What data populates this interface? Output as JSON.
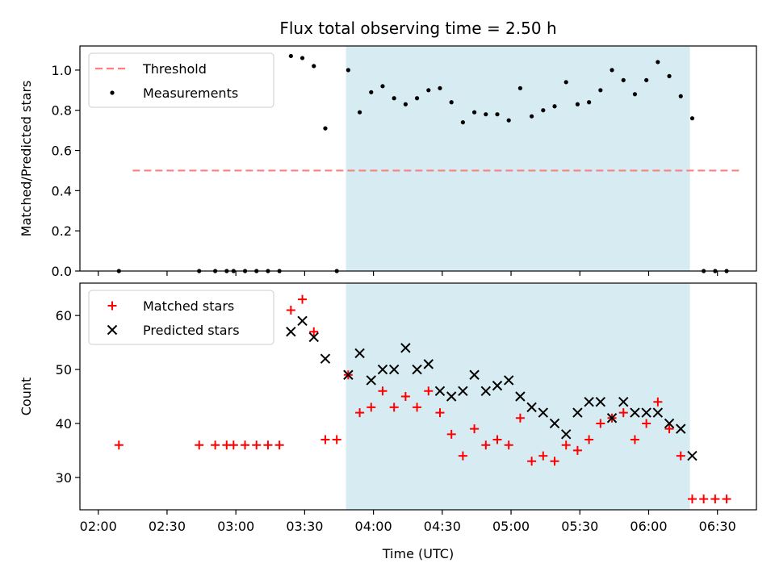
{
  "chart_data": [
    {
      "type": "scatter",
      "title": "Flux total observing time = 2.50 h",
      "xlabel": "",
      "ylabel": "Matched/Predicted stars",
      "ylim": [
        0.0,
        1.12
      ],
      "yticks": [
        "0.0",
        "0.2",
        "0.4",
        "0.6",
        "0.8",
        "1.0"
      ],
      "yticks_values": [
        0.0,
        0.2,
        0.4,
        0.6,
        0.8,
        1.0
      ],
      "xlim": [
        "01:52",
        "06:47"
      ],
      "shaded_interval": [
        "03:48",
        "06:18"
      ],
      "legend": {
        "position": "top-left",
        "entries": [
          "Threshold",
          "Measurements"
        ]
      },
      "series": [
        {
          "name": "Threshold",
          "kind": "dashed-line",
          "color": "#ff7f7f",
          "x": [
            "02:15",
            "06:40"
          ],
          "values": [
            0.5,
            0.5
          ]
        },
        {
          "name": "Measurements",
          "kind": "points",
          "color": "#000000",
          "x": [
            "02:09",
            "02:44",
            "02:51",
            "02:56",
            "02:59",
            "03:04",
            "03:09",
            "03:14",
            "03:19",
            "03:24",
            "03:29",
            "03:34",
            "03:39",
            "03:44",
            "03:49",
            "03:54",
            "03:59",
            "04:04",
            "04:09",
            "04:14",
            "04:19",
            "04:24",
            "04:29",
            "04:34",
            "04:39",
            "04:44",
            "04:49",
            "04:54",
            "04:59",
            "05:04",
            "05:09",
            "05:14",
            "05:19",
            "05:24",
            "05:29",
            "05:34",
            "05:39",
            "05:44",
            "05:49",
            "05:54",
            "05:59",
            "06:04",
            "06:09",
            "06:14",
            "06:19",
            "06:24",
            "06:29",
            "06:34"
          ],
          "values": [
            0.0,
            0.0,
            0.0,
            0.0,
            0.0,
            0.0,
            0.0,
            0.0,
            0.0,
            1.07,
            1.06,
            1.02,
            0.71,
            0.0,
            1.0,
            0.79,
            0.89,
            0.92,
            0.86,
            0.83,
            0.86,
            0.9,
            0.91,
            0.84,
            0.74,
            0.79,
            0.78,
            0.78,
            0.75,
            0.91,
            0.77,
            0.8,
            0.82,
            0.94,
            0.83,
            0.84,
            0.9,
            1.0,
            0.95,
            0.88,
            0.95,
            1.04,
            0.97,
            0.87,
            0.76,
            0.0,
            0.0,
            0.0
          ]
        }
      ]
    },
    {
      "type": "scatter",
      "title": "",
      "xlabel": "Time (UTC)",
      "ylabel": "Count",
      "ylim": [
        24,
        66
      ],
      "yticks": [
        "30",
        "40",
        "50",
        "60"
      ],
      "yticks_values": [
        30,
        40,
        50,
        60
      ],
      "xlim": [
        "01:52",
        "06:47"
      ],
      "xticks": [
        "02:00",
        "02:30",
        "03:00",
        "03:30",
        "04:00",
        "04:30",
        "05:00",
        "05:30",
        "06:00",
        "06:30"
      ],
      "shaded_interval": [
        "03:48",
        "06:18"
      ],
      "legend": {
        "position": "top-left",
        "entries": [
          "Matched stars",
          "Predicted stars"
        ]
      },
      "series": [
        {
          "name": "Matched stars",
          "kind": "plus",
          "color": "#ff0000",
          "x": [
            "02:09",
            "02:44",
            "02:51",
            "02:56",
            "02:59",
            "03:04",
            "03:09",
            "03:14",
            "03:19",
            "03:24",
            "03:29",
            "03:34",
            "03:39",
            "03:44",
            "03:49",
            "03:54",
            "03:59",
            "04:04",
            "04:09",
            "04:14",
            "04:19",
            "04:24",
            "04:29",
            "04:34",
            "04:39",
            "04:44",
            "04:49",
            "04:54",
            "04:59",
            "05:04",
            "05:09",
            "05:14",
            "05:19",
            "05:24",
            "05:29",
            "05:34",
            "05:39",
            "05:44",
            "05:49",
            "05:54",
            "05:59",
            "06:04",
            "06:09",
            "06:14",
            "06:19",
            "06:24",
            "06:29",
            "06:34"
          ],
          "values": [
            36,
            36,
            36,
            36,
            36,
            36,
            36,
            36,
            36,
            61,
            63,
            57,
            37,
            37,
            49,
            42,
            43,
            46,
            43,
            45,
            43,
            46,
            42,
            38,
            34,
            39,
            36,
            37,
            36,
            41,
            33,
            34,
            33,
            36,
            35,
            37,
            40,
            41,
            42,
            37,
            40,
            44,
            39,
            34,
            26,
            26,
            26,
            26
          ]
        },
        {
          "name": "Predicted stars",
          "kind": "x",
          "color": "#000000",
          "x": [
            "03:24",
            "03:29",
            "03:34",
            "03:39",
            "03:49",
            "03:54",
            "03:59",
            "04:04",
            "04:09",
            "04:14",
            "04:19",
            "04:24",
            "04:29",
            "04:34",
            "04:39",
            "04:44",
            "04:49",
            "04:54",
            "04:59",
            "05:04",
            "05:09",
            "05:14",
            "05:19",
            "05:24",
            "05:29",
            "05:34",
            "05:39",
            "05:44",
            "05:49",
            "05:54",
            "05:59",
            "06:04",
            "06:09",
            "06:14",
            "06:19"
          ],
          "values": [
            57,
            59,
            56,
            52,
            49,
            53,
            48,
            50,
            50,
            54,
            50,
            51,
            46,
            45,
            46,
            49,
            46,
            47,
            48,
            45,
            43,
            42,
            40,
            38,
            42,
            44,
            44,
            41,
            44,
            42,
            42,
            42,
            40,
            39,
            34
          ]
        }
      ]
    }
  ]
}
